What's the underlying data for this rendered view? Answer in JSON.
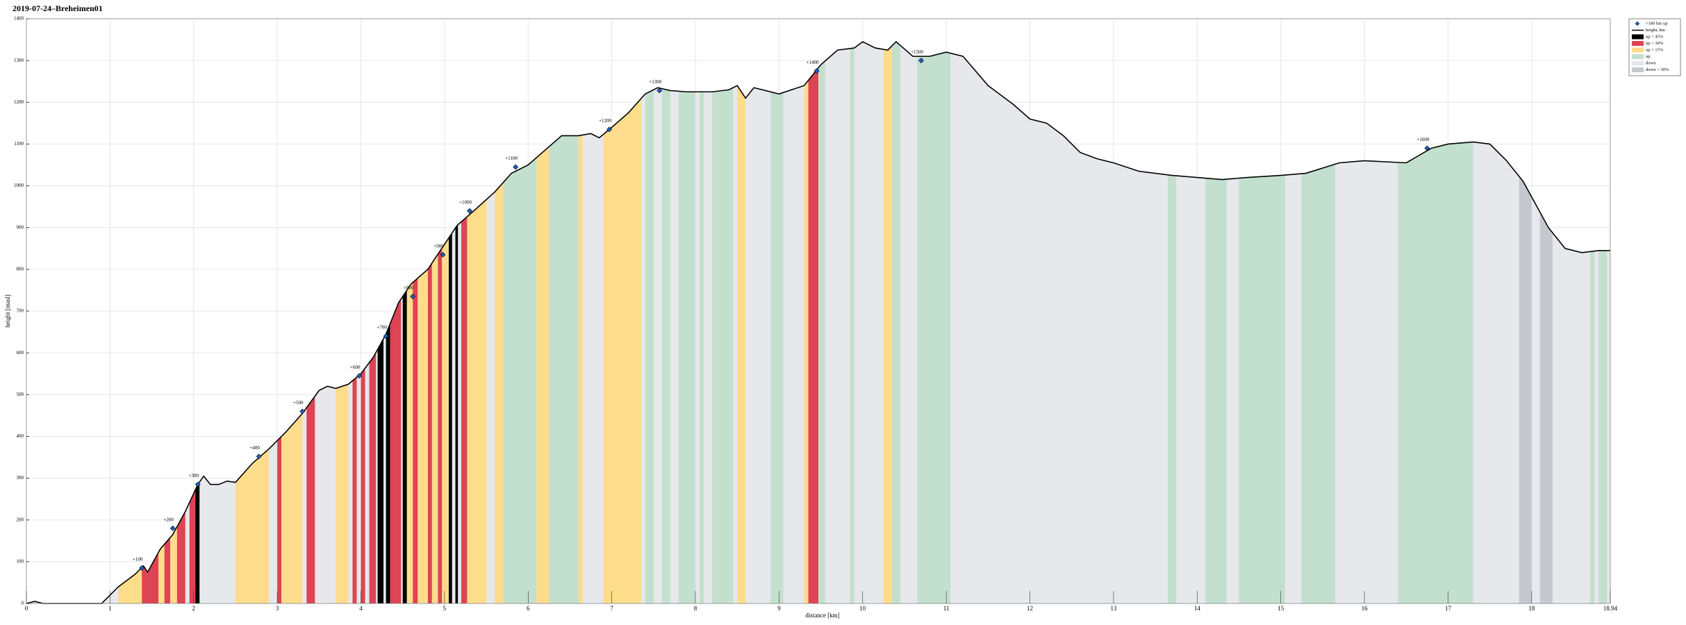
{
  "chart_data": {
    "type": "area-profile",
    "title": "2019-07-24–Breheimen01",
    "x_label": "distance [km]",
    "y_label": "height [masl]",
    "xlim": [
      0,
      18.94
    ],
    "ylim": [
      0,
      1400
    ],
    "xticks": [
      0,
      1,
      2,
      3,
      4,
      5,
      6,
      7,
      8,
      9,
      10,
      11,
      12,
      13,
      14,
      15,
      16,
      17,
      18,
      18.94
    ],
    "yticks": [
      0,
      100,
      200,
      300,
      400,
      500,
      600,
      700,
      800,
      900,
      1000,
      1100,
      1200,
      1300,
      1400
    ],
    "grid": true,
    "legend_position": "upper right",
    "marker_name": "+100 hm up",
    "marker_color": "#1f5fbf",
    "profile": {
      "name": "height, km",
      "color": "#000000",
      "x": [
        0,
        0.1,
        0.2,
        0.5,
        0.9,
        1.1,
        1.3,
        1.4,
        1.45,
        1.6,
        1.75,
        1.9,
        2.05,
        2.12,
        2.2,
        2.3,
        2.4,
        2.5,
        2.7,
        2.9,
        3.1,
        3.3,
        3.5,
        3.6,
        3.7,
        3.85,
        4.0,
        4.15,
        4.3,
        4.45,
        4.6,
        4.8,
        5.0,
        5.15,
        5.35,
        5.6,
        5.8,
        6.0,
        6.2,
        6.4,
        6.6,
        6.75,
        6.85,
        7.0,
        7.2,
        7.4,
        7.55,
        7.7,
        7.9,
        8.2,
        8.4,
        8.5,
        8.6,
        8.7,
        9.0,
        9.3,
        9.5,
        9.7,
        9.9,
        10.0,
        10.15,
        10.3,
        10.4,
        10.6,
        10.8,
        11.0,
        11.2,
        11.5,
        11.8,
        12.0,
        12.2,
        12.4,
        12.6,
        12.8,
        13.0,
        13.3,
        13.7,
        14.0,
        14.3,
        14.6,
        15.0,
        15.3,
        15.7,
        16.0,
        16.5,
        16.8,
        17.0,
        17.3,
        17.5,
        17.7,
        17.9,
        18.2,
        18.4,
        18.6,
        18.8,
        18.94
      ],
      "y": [
        0,
        5,
        0,
        0,
        0,
        40,
        70,
        90,
        75,
        130,
        165,
        220,
        285,
        305,
        285,
        285,
        293,
        290,
        335,
        370,
        410,
        455,
        510,
        520,
        515,
        525,
        550,
        590,
        645,
        720,
        765,
        800,
        860,
        905,
        940,
        985,
        1030,
        1050,
        1085,
        1120,
        1120,
        1125,
        1115,
        1140,
        1175,
        1220,
        1235,
        1228,
        1225,
        1225,
        1230,
        1240,
        1210,
        1235,
        1220,
        1240,
        1290,
        1325,
        1330,
        1345,
        1330,
        1325,
        1345,
        1310,
        1310,
        1320,
        1310,
        1240,
        1195,
        1160,
        1150,
        1120,
        1080,
        1065,
        1055,
        1035,
        1025,
        1020,
        1015,
        1020,
        1025,
        1030,
        1055,
        1060,
        1055,
        1090,
        1100,
        1105,
        1100,
        1060,
        1010,
        900,
        850,
        840,
        845,
        845
      ]
    },
    "series": [
      {
        "name": "up > 45%",
        "color": "#000000",
        "ranges": [
          [
            2.02,
            2.07
          ],
          [
            4.2,
            4.27
          ],
          [
            4.3,
            4.35
          ],
          [
            4.5,
            4.55
          ],
          [
            5.05,
            5.09
          ],
          [
            5.13,
            5.16
          ]
        ]
      },
      {
        "name": "up > 30%",
        "color": "#de4453",
        "ranges": [
          [
            1.38,
            1.58
          ],
          [
            1.65,
            1.72
          ],
          [
            1.8,
            1.9
          ],
          [
            1.95,
            2.02
          ],
          [
            3.0,
            3.05
          ],
          [
            3.35,
            3.45
          ],
          [
            3.9,
            3.95
          ],
          [
            4.0,
            4.05
          ],
          [
            4.1,
            4.18
          ],
          [
            4.35,
            4.48
          ],
          [
            4.62,
            4.68
          ],
          [
            4.8,
            4.85
          ],
          [
            4.92,
            4.97
          ],
          [
            5.2,
            5.27
          ],
          [
            9.35,
            9.47
          ]
        ]
      },
      {
        "name": "up > 15%",
        "color": "#fddc8c",
        "ranges": [
          [
            1.1,
            1.38
          ],
          [
            1.58,
            1.65
          ],
          [
            1.72,
            1.8
          ],
          [
            2.5,
            2.9
          ],
          [
            3.05,
            3.3
          ],
          [
            3.7,
            3.85
          ],
          [
            4.55,
            4.62
          ],
          [
            4.68,
            4.8
          ],
          [
            4.85,
            4.92
          ],
          [
            4.97,
            5.05
          ],
          [
            5.27,
            5.5
          ],
          [
            5.6,
            5.7
          ],
          [
            6.1,
            6.25
          ],
          [
            6.6,
            6.65
          ],
          [
            6.9,
            7.35
          ],
          [
            8.5,
            8.6
          ],
          [
            9.3,
            9.35
          ],
          [
            10.25,
            10.35
          ]
        ]
      },
      {
        "name": "up",
        "color": "#c3dfcd",
        "ranges": [
          [
            5.7,
            6.1
          ],
          [
            6.25,
            6.6
          ],
          [
            7.4,
            7.5
          ],
          [
            7.6,
            7.7
          ],
          [
            7.8,
            8.0
          ],
          [
            8.05,
            8.1
          ],
          [
            8.2,
            8.45
          ],
          [
            8.9,
            9.05
          ],
          [
            9.47,
            9.55
          ],
          [
            9.85,
            9.9
          ],
          [
            10.35,
            10.45
          ],
          [
            10.65,
            11.05
          ],
          [
            13.65,
            13.75
          ],
          [
            14.1,
            14.35
          ],
          [
            14.5,
            15.05
          ],
          [
            15.25,
            15.65
          ],
          [
            16.4,
            17.3
          ],
          [
            18.7,
            18.75
          ],
          [
            18.8,
            18.9
          ]
        ]
      },
      {
        "name": "down",
        "color": "#e7e8eb"
      },
      {
        "name": "down > 30%",
        "color": "#c6c8cf",
        "ranges": [
          [
            17.85,
            18.0
          ],
          [
            18.1,
            18.25
          ]
        ]
      }
    ],
    "annotations": [
      {
        "label": "+100",
        "x": 1.38,
        "y": 85
      },
      {
        "label": "+200",
        "x": 1.75,
        "y": 180
      },
      {
        "label": "+300",
        "x": 2.05,
        "y": 285
      },
      {
        "label": "+400",
        "x": 2.78,
        "y": 352
      },
      {
        "label": "+500",
        "x": 3.3,
        "y": 460
      },
      {
        "label": "+600",
        "x": 3.98,
        "y": 545
      },
      {
        "label": "+700",
        "x": 4.3,
        "y": 640
      },
      {
        "label": "+800",
        "x": 4.62,
        "y": 735
      },
      {
        "label": "+900",
        "x": 4.98,
        "y": 835
      },
      {
        "label": "+1000",
        "x": 5.3,
        "y": 940
      },
      {
        "label": "+1100",
        "x": 5.85,
        "y": 1045
      },
      {
        "label": "+1200",
        "x": 6.97,
        "y": 1135
      },
      {
        "label": "+1300",
        "x": 7.57,
        "y": 1228
      },
      {
        "label": "+1400",
        "x": 9.45,
        "y": 1275
      },
      {
        "label": "+1500",
        "x": 10.7,
        "y": 1300
      },
      {
        "label": "+1600",
        "x": 16.75,
        "y": 1090
      }
    ]
  }
}
